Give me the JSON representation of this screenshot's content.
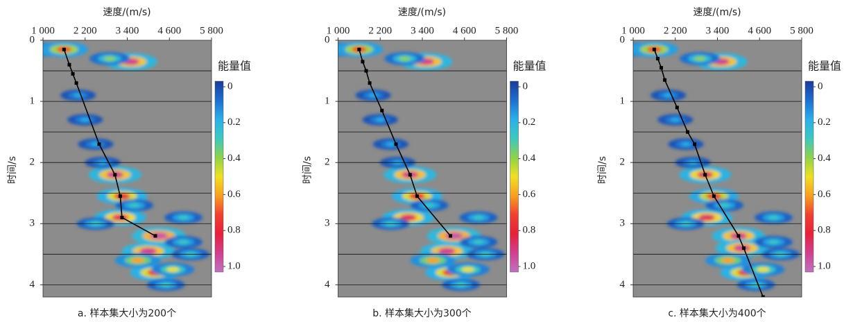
{
  "chart_data": [
    {
      "type": "heatmap",
      "x_label": "速度/(m/s)",
      "y_label": "时间/s",
      "caption": "a. 样本集大小为200个",
      "xlim": [
        1000,
        5800
      ],
      "ylim": [
        0,
        4.2
      ],
      "xticks": [
        {
          "value": 1000,
          "label": "1 000"
        },
        {
          "value": 2200,
          "label": "2 200"
        },
        {
          "value": 3400,
          "label": "3 400"
        },
        {
          "value": 4600,
          "label": "4 600"
        },
        {
          "value": 5800,
          "label": "5 800"
        }
      ],
      "yticks": [
        0,
        1,
        2,
        3,
        4
      ],
      "ygrid": [
        0.5,
        1,
        1.5,
        2,
        2.5,
        3,
        3.5,
        4
      ],
      "background": "#8c8c8c",
      "colorbar": {
        "title": "能量值",
        "ticks": [
          0,
          0.2,
          0.4,
          0.6,
          0.8,
          {
            "value": 1,
            "label": "1.0"
          }
        ],
        "colors": [
          "#1a3a9a",
          "#1e6fd0",
          "#2ab0e8",
          "#3cc8c0",
          "#8fd24a",
          "#f0e020",
          "#f8a020",
          "#f04030",
          "#e8203a",
          "#d04090",
          "#c070c0"
        ]
      },
      "peaks": {
        "x": [
          1050,
          1600,
          3500,
          2900,
          3050,
          3250,
          3200,
          4300,
          4000,
          4200,
          3700,
          4700,
          5000,
          5000,
          2500,
          2000,
          2200,
          2700,
          4500,
          2500,
          3600,
          5200
        ],
        "y": [
          0.15,
          0.15,
          0.35,
          0.3,
          2.2,
          2.55,
          2.9,
          3.2,
          3.45,
          3.8,
          3.6,
          3.75,
          3.3,
          2.9,
          1.7,
          0.9,
          1.3,
          2.0,
          4.0,
          3.0,
          2.7,
          3.5
        ],
        "values": [
          0.5,
          0.7,
          0.9,
          0.4,
          0.9,
          0.8,
          0.85,
          0.95,
          0.9,
          0.8,
          0.6,
          0.5,
          0.3,
          0.3,
          0.2,
          0.2,
          0.2,
          0.2,
          0.3,
          0.3,
          0.3,
          0.3
        ]
      },
      "series": [
        {
          "color": "#000000",
          "x": [
            1600,
            1750,
            1850,
            1950,
            2600,
            3050,
            3200,
            3250,
            4200
          ],
          "y": [
            0.15,
            0.4,
            0.55,
            0.7,
            1.7,
            2.2,
            2.55,
            2.9,
            3.2
          ]
        }
      ]
    },
    {
      "type": "heatmap",
      "x_label": "速度/(m/s)",
      "y_label": "时间/s",
      "caption": "b. 样本集大小为300个",
      "xlim": [
        1000,
        5800
      ],
      "ylim": [
        0,
        4.2
      ],
      "xticks": [
        {
          "value": 1000,
          "label": "1 000"
        },
        {
          "value": 2200,
          "label": "2 200"
        },
        {
          "value": 3400,
          "label": "3 400"
        },
        {
          "value": 4600,
          "label": "4 600"
        },
        {
          "value": 5800,
          "label": "5 800"
        }
      ],
      "yticks": [
        0,
        1,
        2,
        3,
        4
      ],
      "ygrid": [
        0.5,
        1,
        1.5,
        2,
        2.5,
        3,
        3.5,
        4
      ],
      "background": "#8c8c8c",
      "colorbar": {
        "title": "能量值",
        "ticks": [
          0,
          0.2,
          0.4,
          0.6,
          0.8,
          {
            "value": 1,
            "label": "1.0"
          }
        ],
        "colors": [
          "#1a3a9a",
          "#1e6fd0",
          "#2ab0e8",
          "#3cc8c0",
          "#8fd24a",
          "#f0e020",
          "#f8a020",
          "#f04030",
          "#e8203a",
          "#d04090",
          "#c070c0"
        ]
      },
      "peaks": {
        "x": [
          1050,
          1600,
          3500,
          2900,
          3050,
          3250,
          3000,
          4300,
          4100,
          4200,
          3700,
          4700,
          5000,
          5000,
          2500,
          2000,
          2200,
          2700,
          4500,
          2500,
          3600,
          5200
        ],
        "y": [
          0.15,
          0.15,
          0.35,
          0.3,
          2.2,
          2.55,
          2.9,
          3.2,
          3.45,
          3.8,
          3.6,
          3.75,
          3.3,
          2.9,
          1.7,
          0.9,
          1.3,
          2.0,
          4.0,
          3.0,
          2.7,
          3.5
        ],
        "values": [
          0.5,
          0.7,
          0.9,
          0.4,
          0.9,
          0.8,
          0.85,
          0.95,
          0.9,
          0.8,
          0.6,
          0.5,
          0.3,
          0.3,
          0.2,
          0.2,
          0.2,
          0.2,
          0.3,
          0.3,
          0.3,
          0.3
        ]
      },
      "series": [
        {
          "color": "#000000",
          "x": [
            1600,
            1700,
            1800,
            1900,
            2250,
            2650,
            3050,
            3250,
            4200
          ],
          "y": [
            0.15,
            0.35,
            0.5,
            0.7,
            1.15,
            1.7,
            2.2,
            2.55,
            3.2
          ]
        }
      ]
    },
    {
      "type": "heatmap",
      "x_label": "速度/(m/s)",
      "y_label": "时间/s",
      "caption": "c. 样本集大小为400个",
      "xlim": [
        1000,
        5800
      ],
      "ylim": [
        0,
        4.2
      ],
      "xticks": [
        {
          "value": 1000,
          "label": "1 000"
        },
        {
          "value": 2200,
          "label": "2 200"
        },
        {
          "value": 3400,
          "label": "3 400"
        },
        {
          "value": 4600,
          "label": "4 600"
        },
        {
          "value": 5800,
          "label": "5 800"
        }
      ],
      "yticks": [
        0,
        1,
        2,
        3,
        4
      ],
      "ygrid": [
        0.5,
        1,
        1.5,
        2,
        2.5,
        3,
        3.5,
        4
      ],
      "background": "#8c8c8c",
      "colorbar": {
        "title": "能量值",
        "ticks": [
          0,
          0.2,
          0.4,
          0.6,
          0.8,
          {
            "value": 1,
            "label": "1.0"
          }
        ],
        "colors": [
          "#1a3a9a",
          "#1e6fd0",
          "#2ab0e8",
          "#3cc8c0",
          "#8fd24a",
          "#f0e020",
          "#f8a020",
          "#f04030",
          "#e8203a",
          "#d04090",
          "#c070c0"
        ]
      },
      "peaks": {
        "x": [
          1050,
          1600,
          3500,
          2900,
          3050,
          3300,
          3100,
          4000,
          4100,
          4200,
          3700,
          4700,
          5000,
          5000,
          2500,
          2000,
          2200,
          2700,
          4500,
          2500,
          3600,
          5200
        ],
        "y": [
          0.15,
          0.15,
          0.35,
          0.3,
          2.2,
          2.55,
          2.9,
          3.2,
          3.4,
          3.8,
          3.6,
          3.75,
          3.3,
          2.9,
          1.7,
          0.9,
          1.3,
          2.0,
          4.0,
          3.0,
          2.7,
          3.5
        ],
        "values": [
          0.5,
          0.7,
          0.9,
          0.4,
          0.85,
          0.75,
          0.85,
          0.9,
          0.9,
          0.8,
          0.6,
          0.5,
          0.3,
          0.3,
          0.2,
          0.2,
          0.2,
          0.2,
          0.3,
          0.3,
          0.3,
          0.3
        ]
      },
      "series": [
        {
          "color": "#000000",
          "x": [
            1600,
            1700,
            1800,
            1900,
            2250,
            2550,
            2750,
            3050,
            3300,
            4000,
            4150,
            4700
          ],
          "y": [
            0.15,
            0.3,
            0.45,
            0.65,
            1.1,
            1.5,
            1.7,
            2.2,
            2.55,
            3.2,
            3.4,
            4.2
          ]
        }
      ]
    }
  ]
}
